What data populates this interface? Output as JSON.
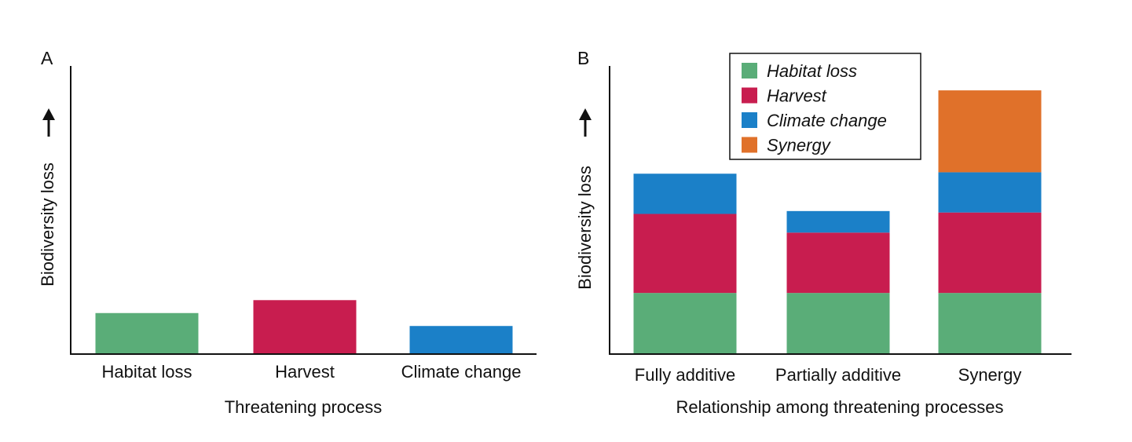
{
  "colors": {
    "habitat": "#5aad78",
    "harvest": "#c81d4f",
    "climate": "#1b80c8",
    "synergy": "#e0712a"
  },
  "chart_data": [
    {
      "type": "bar",
      "panel_label": "A",
      "categories": [
        "Habitat loss",
        "Harvest",
        "Climate change"
      ],
      "values": [
        14,
        18.5,
        9.5
      ],
      "colors": [
        "#5aad78",
        "#c81d4f",
        "#1b80c8"
      ],
      "xlabel": "Threatening process",
      "ylabel": "Biodiversity loss",
      "ylim": [
        0,
        100
      ],
      "grid": false
    },
    {
      "type": "bar",
      "stacked": true,
      "panel_label": "B",
      "categories": [
        "Fully additive",
        "Partially additive",
        "Synergy"
      ],
      "series": [
        {
          "name": "Habitat loss",
          "color": "#5aad78",
          "values": [
            21,
            21,
            21
          ]
        },
        {
          "name": "Harvest",
          "color": "#c81d4f",
          "values": [
            27.5,
            21,
            28
          ]
        },
        {
          "name": "Climate change",
          "color": "#1b80c8",
          "values": [
            14,
            7.5,
            14
          ]
        },
        {
          "name": "Synergy",
          "color": "#e0712a",
          "values": [
            0,
            0,
            28.5
          ]
        }
      ],
      "xlabel": "Relationship among threatening processes",
      "ylabel": "Biodiversity loss",
      "ylim": [
        0,
        100
      ],
      "legend_position": "top-center",
      "grid": false
    }
  ]
}
